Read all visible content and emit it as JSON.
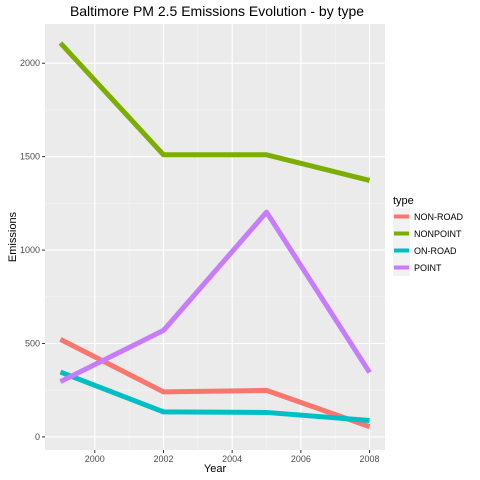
{
  "chart_data": {
    "type": "line",
    "title": "Baltimore PM 2.5 Emissions Evolution - by type",
    "xlabel": "Year",
    "ylabel": "Emissions",
    "x": [
      1999,
      2002,
      2005,
      2008
    ],
    "xlim": [
      1998.55,
      2008.45
    ],
    "ylim": [
      -70,
      2210
    ],
    "x_ticks": [
      2000,
      2002,
      2004,
      2006,
      2008
    ],
    "y_ticks": [
      0,
      500,
      1000,
      1500,
      2000
    ],
    "grid": true,
    "legend": {
      "title": "type",
      "position": "right"
    },
    "series": [
      {
        "name": "NON-ROAD",
        "color": "#f8766d",
        "values": [
          522,
          241,
          249,
          55
        ]
      },
      {
        "name": "NONPOINT",
        "color": "#7cae00",
        "values": [
          2108,
          1510,
          1510,
          1373
        ]
      },
      {
        "name": "ON-ROAD",
        "color": "#00bfc4",
        "values": [
          347,
          134,
          131,
          88
        ]
      },
      {
        "name": "POINT",
        "color": "#c77cff",
        "values": [
          296,
          570,
          1203,
          345
        ]
      }
    ]
  }
}
